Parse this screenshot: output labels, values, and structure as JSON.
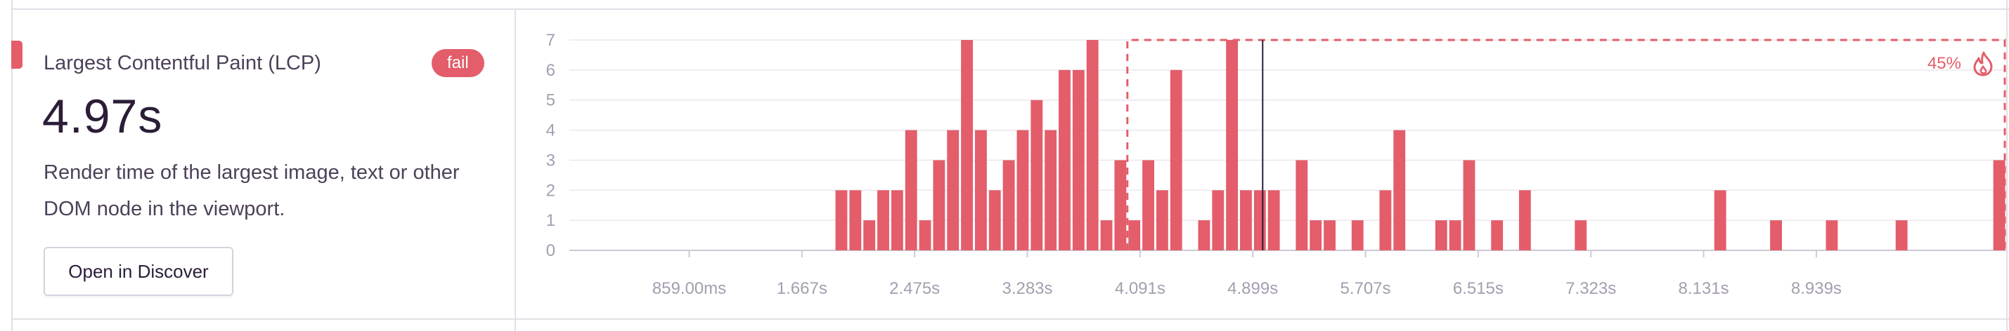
{
  "card": {
    "title": "Largest Contentful Paint (LCP)",
    "badge": "fail",
    "value": "4.97s",
    "description": "Render time of the largest image, text or other DOM node in the viewport.",
    "button_label": "Open in Discover"
  },
  "colors": {
    "bar": "#e35d6a",
    "accent": "#e35d6a",
    "grid": "#ebe7ef",
    "axis_text": "#a59db0",
    "marker": "#2b1d38"
  },
  "chart_data": {
    "type": "bar",
    "ylim": [
      0,
      7
    ],
    "y_ticks": [
      0,
      1,
      2,
      3,
      4,
      5,
      6,
      7
    ],
    "xlim_seconds": [
      0,
      10.3
    ],
    "x_ticks": [
      {
        "value": 0.859,
        "label": "859.00ms"
      },
      {
        "value": 1.667,
        "label": "1.667s"
      },
      {
        "value": 2.475,
        "label": "2.475s"
      },
      {
        "value": 3.283,
        "label": "3.283s"
      },
      {
        "value": 4.091,
        "label": "4.091s"
      },
      {
        "value": 4.899,
        "label": "4.899s"
      },
      {
        "value": 5.707,
        "label": "5.707s"
      },
      {
        "value": 6.515,
        "label": "6.515s"
      },
      {
        "value": 7.323,
        "label": "7.323s"
      },
      {
        "value": 8.131,
        "label": "8.131s"
      },
      {
        "value": 8.939,
        "label": "8.939s"
      }
    ],
    "bin_width_seconds": 0.1,
    "bins": [
      {
        "x": 1.95,
        "y": 2
      },
      {
        "x": 2.05,
        "y": 2
      },
      {
        "x": 2.15,
        "y": 1
      },
      {
        "x": 2.25,
        "y": 2
      },
      {
        "x": 2.35,
        "y": 2
      },
      {
        "x": 2.45,
        "y": 4
      },
      {
        "x": 2.55,
        "y": 1
      },
      {
        "x": 2.65,
        "y": 3
      },
      {
        "x": 2.75,
        "y": 4
      },
      {
        "x": 2.85,
        "y": 7
      },
      {
        "x": 2.95,
        "y": 4
      },
      {
        "x": 3.05,
        "y": 2
      },
      {
        "x": 3.15,
        "y": 3
      },
      {
        "x": 3.25,
        "y": 4
      },
      {
        "x": 3.35,
        "y": 5
      },
      {
        "x": 3.45,
        "y": 4
      },
      {
        "x": 3.55,
        "y": 6
      },
      {
        "x": 3.65,
        "y": 6
      },
      {
        "x": 3.75,
        "y": 7
      },
      {
        "x": 3.85,
        "y": 1
      },
      {
        "x": 3.95,
        "y": 3
      },
      {
        "x": 4.05,
        "y": 1
      },
      {
        "x": 4.15,
        "y": 3
      },
      {
        "x": 4.25,
        "y": 2
      },
      {
        "x": 4.35,
        "y": 6
      },
      {
        "x": 4.55,
        "y": 1
      },
      {
        "x": 4.65,
        "y": 2
      },
      {
        "x": 4.75,
        "y": 7
      },
      {
        "x": 4.85,
        "y": 2
      },
      {
        "x": 4.95,
        "y": 2
      },
      {
        "x": 5.05,
        "y": 2
      },
      {
        "x": 5.25,
        "y": 3
      },
      {
        "x": 5.35,
        "y": 1
      },
      {
        "x": 5.45,
        "y": 1
      },
      {
        "x": 5.65,
        "y": 1
      },
      {
        "x": 5.85,
        "y": 2
      },
      {
        "x": 5.95,
        "y": 4
      },
      {
        "x": 6.25,
        "y": 1
      },
      {
        "x": 6.35,
        "y": 1
      },
      {
        "x": 6.45,
        "y": 3
      },
      {
        "x": 6.65,
        "y": 1
      },
      {
        "x": 6.85,
        "y": 2
      },
      {
        "x": 7.25,
        "y": 1
      },
      {
        "x": 8.25,
        "y": 2
      },
      {
        "x": 8.65,
        "y": 1
      },
      {
        "x": 9.05,
        "y": 1
      },
      {
        "x": 9.55,
        "y": 1
      },
      {
        "x": 10.25,
        "y": 3
      }
    ],
    "marker_value_seconds": 4.97,
    "fail_region": {
      "x_start_seconds": 4.0,
      "x_end_seconds": 10.3,
      "percent_label": "45%",
      "icon": "fire-icon"
    }
  }
}
